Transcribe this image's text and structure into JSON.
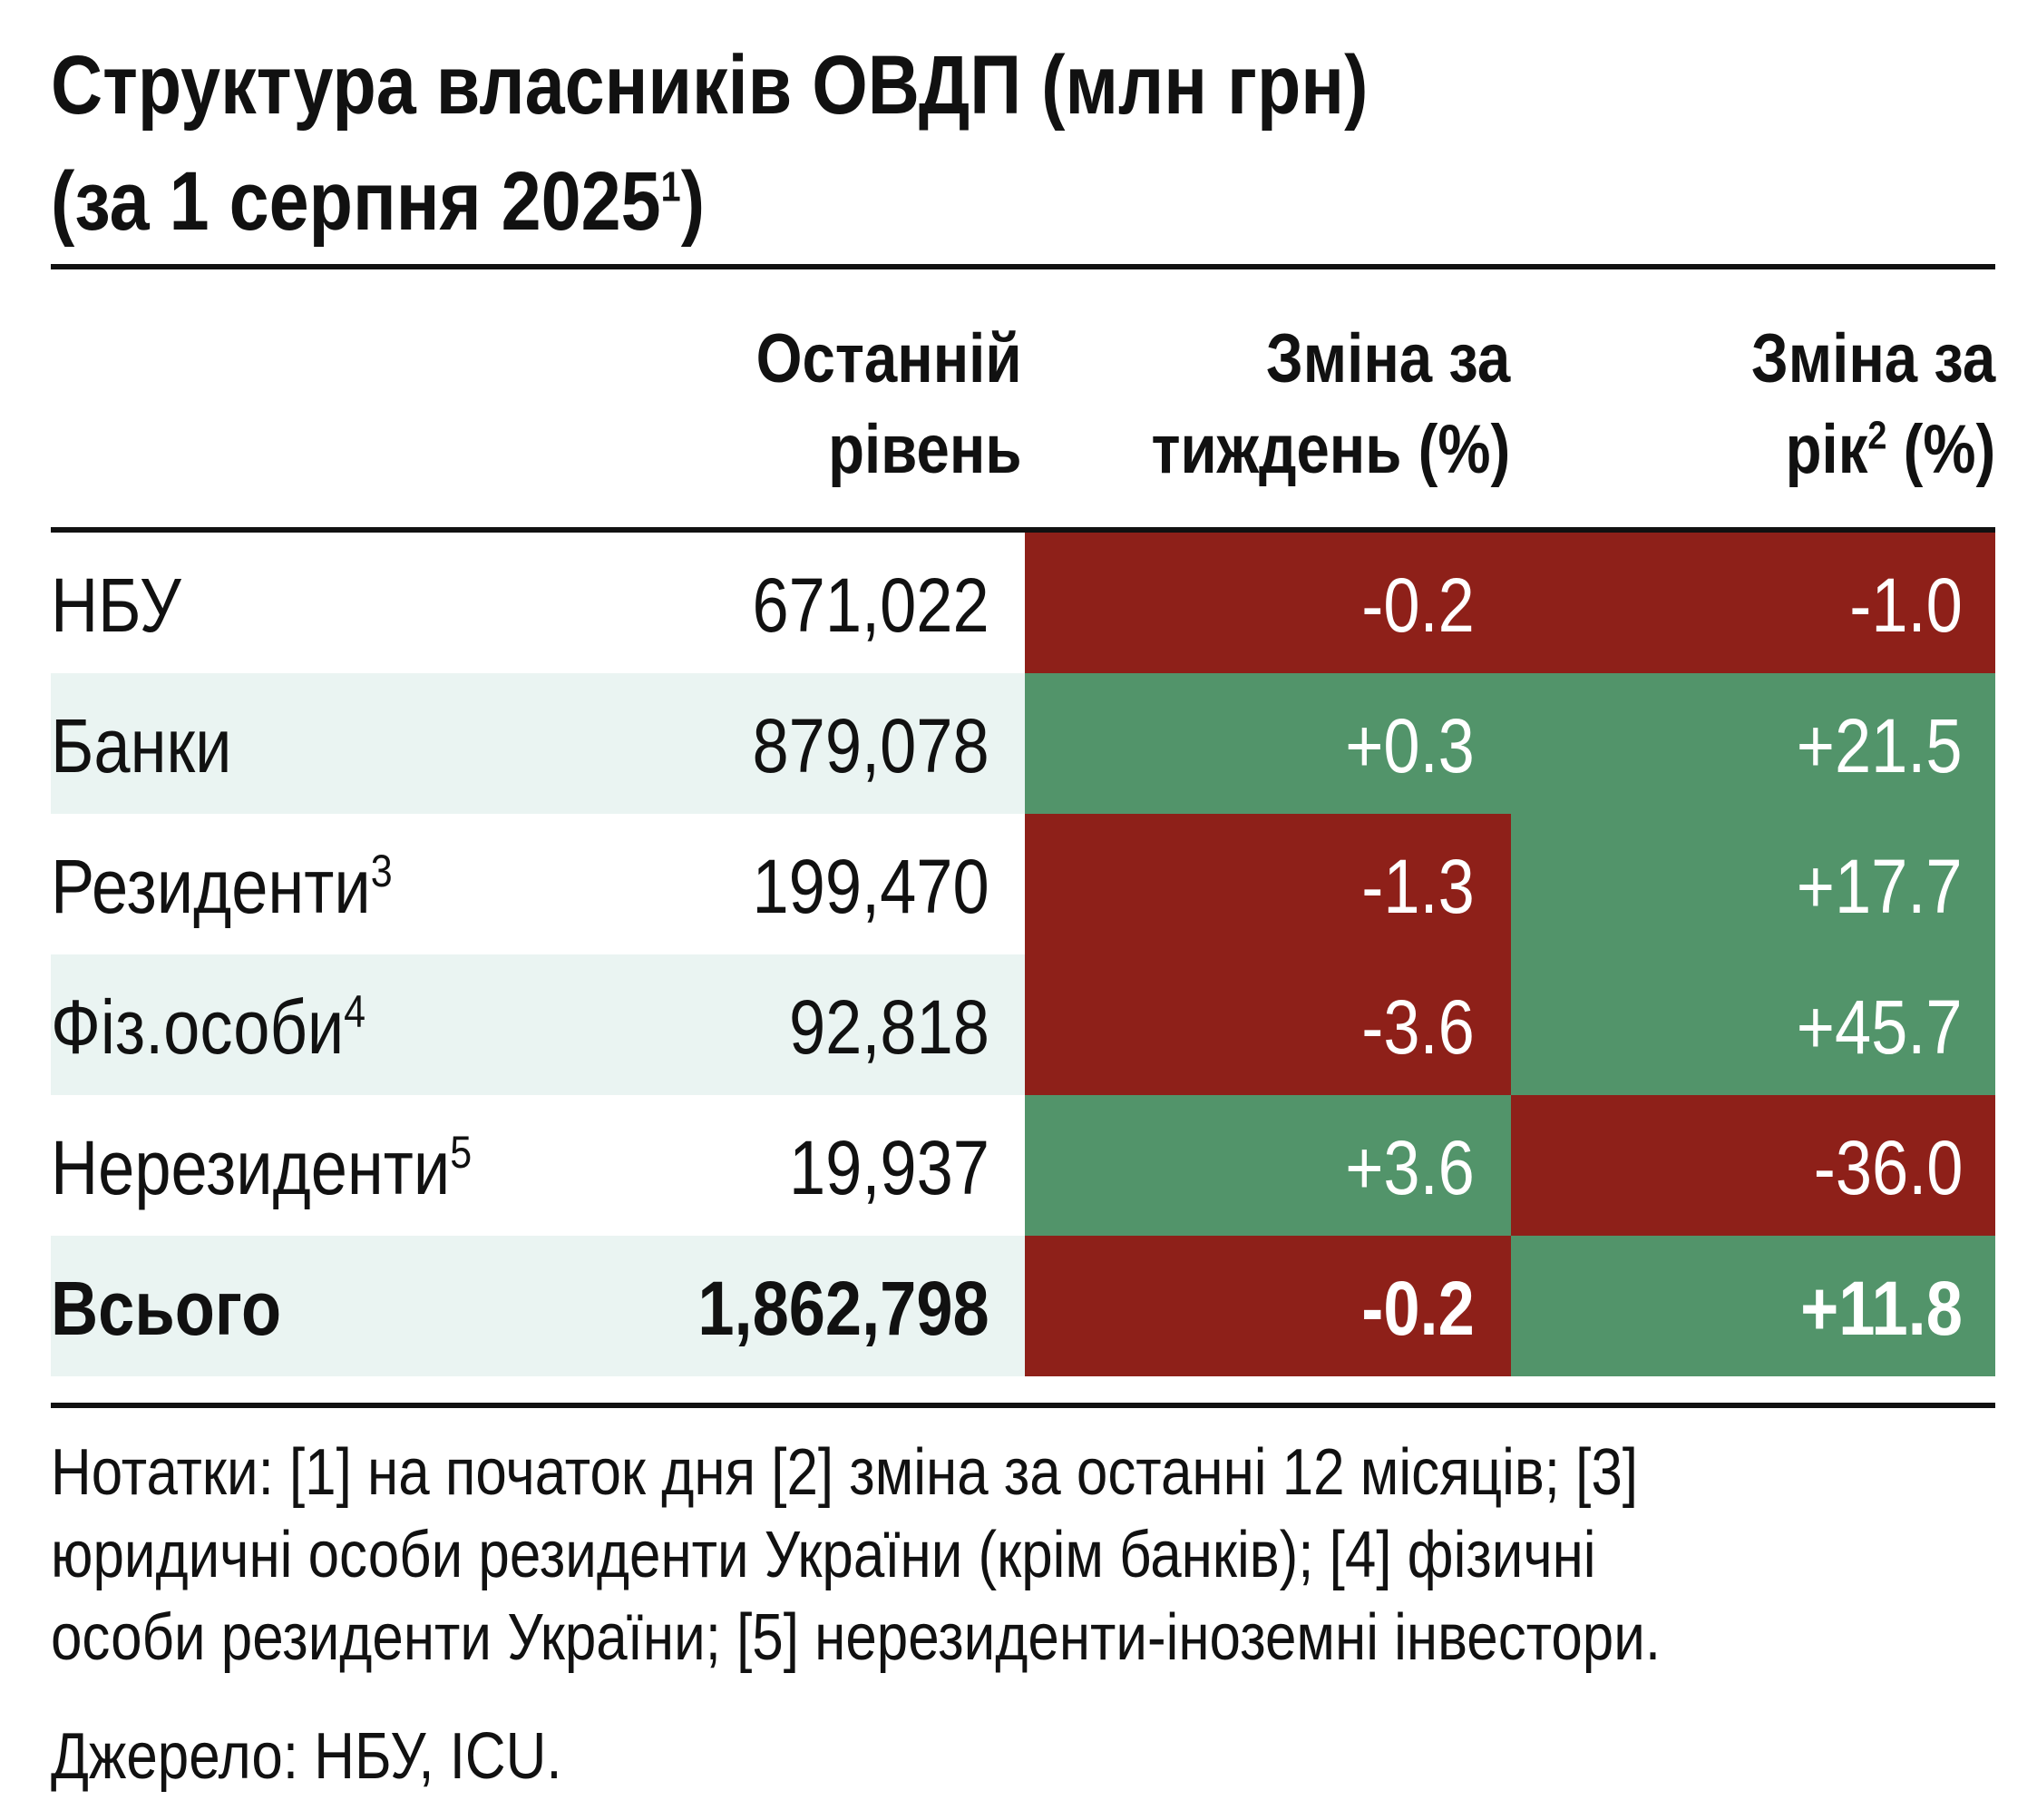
{
  "title": {
    "line1": "Структура власників ОВДП (млн грн)",
    "line2": "(за 1 серпня 2025",
    "line2_sup": "1",
    "line2_end": ")"
  },
  "headers": {
    "level": {
      "line1": "Останній",
      "line2": "рівень"
    },
    "week": {
      "line1": "Зміна за",
      "line2": "тиждень (%)"
    },
    "year": {
      "line1": "Зміна за",
      "line2_pre": "рік",
      "line2_sup": "2",
      "line2_post": " (%)"
    }
  },
  "rows": [
    {
      "label": "НБУ",
      "sup": "",
      "level": "671,022",
      "week": "-0.2",
      "year": "-1.0"
    },
    {
      "label": "Банки",
      "sup": "",
      "level": "879,078",
      "week": "+0.3",
      "year": "+21.5"
    },
    {
      "label": "Резиденти",
      "sup": "3",
      "level": "199,470",
      "week": "-1.3",
      "year": "+17.7"
    },
    {
      "label": "Фіз.особи",
      "sup": "4",
      "level": "92,818",
      "week": "-3.6",
      "year": "+45.7"
    },
    {
      "label": "Нерезиденти",
      "sup": "5",
      "level": "19,937",
      "week": "+3.6",
      "year": "-36.0"
    },
    {
      "label": "Всього",
      "sup": "",
      "level": "1,862,798",
      "week": "-0.2",
      "year": "+11.8"
    }
  ],
  "notes": {
    "line1": "Нотатки: [1] на початок дня [2] зміна за останні 12 місяців; [3]",
    "line2": "юридичні особи  резиденти України (крім банків); [4] фізичні",
    "line3": "особи резиденти України; [5] нерезиденти-іноземні інвестори."
  },
  "source": "Джерело: НБУ, ICU.",
  "colors": {
    "negative": "#8e2019",
    "positive": "#52946a",
    "row_tint": "#eaf4f2"
  }
}
